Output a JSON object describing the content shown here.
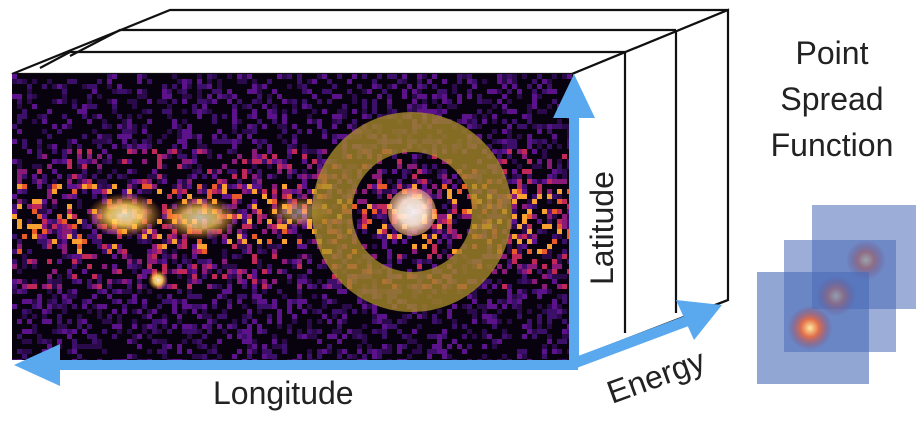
{
  "labels": {
    "latitude": "Latitude",
    "longitude": "Longitude",
    "energy": "Energy"
  },
  "psf": {
    "title_lines": [
      "Point",
      "Spread",
      "Function"
    ]
  },
  "colors": {
    "axis_arrow": "#5aa9ef",
    "cube_edge": "#111111",
    "ring": "#a88a2a",
    "psf_panel": "#4a6bb8",
    "psf_source": "#e07a50"
  },
  "icons": {
    "ring": "annulus-region",
    "source": "bright-point-source",
    "psf_panels": "psf-panel-stack"
  }
}
